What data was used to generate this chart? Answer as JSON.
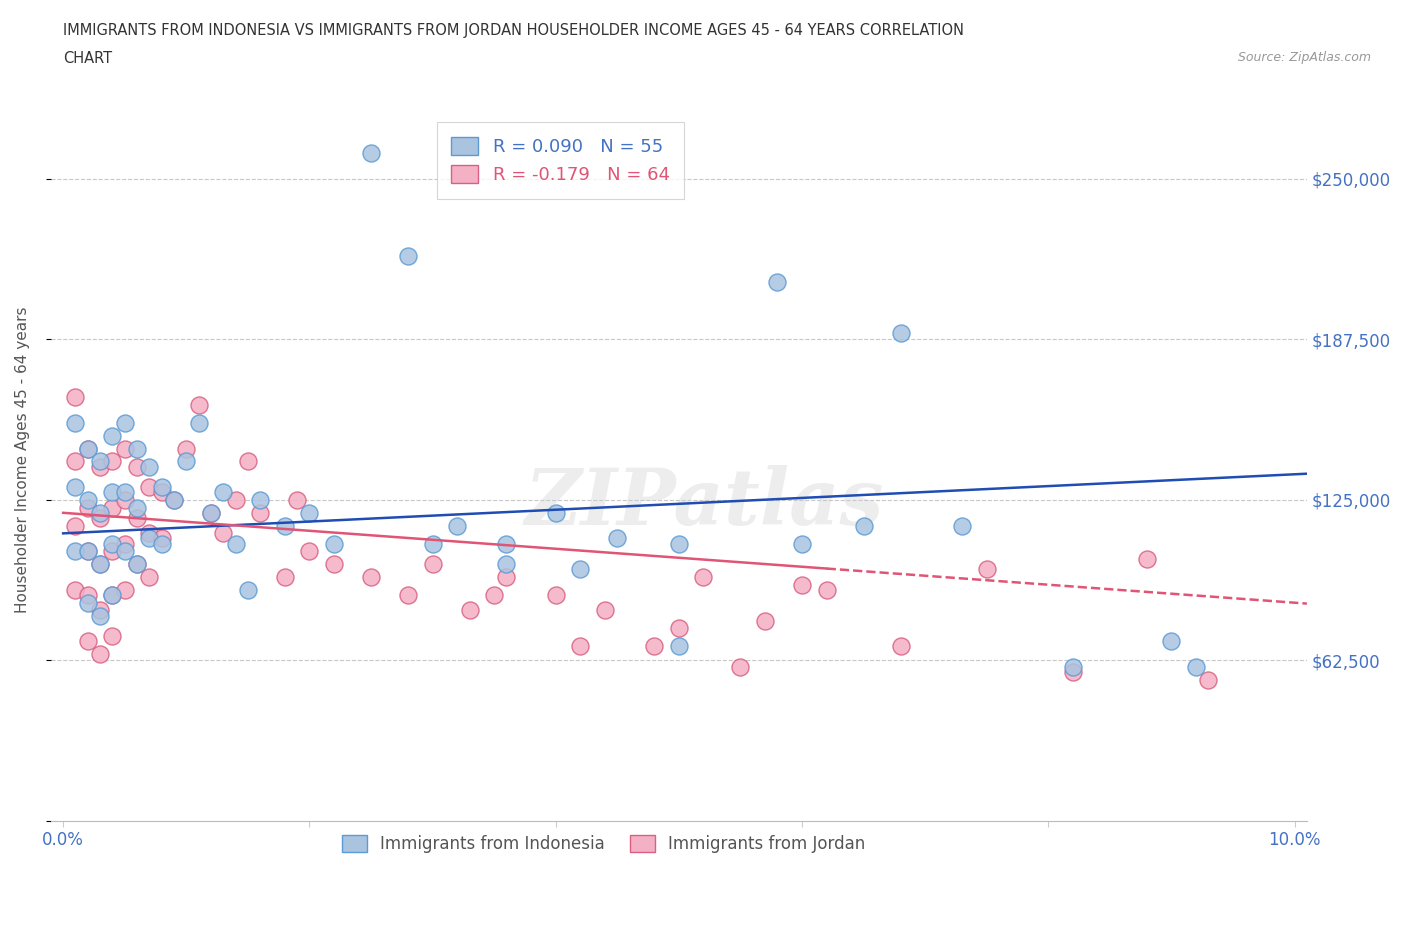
{
  "title_line1": "IMMIGRANTS FROM INDONESIA VS IMMIGRANTS FROM JORDAN HOUSEHOLDER INCOME AGES 45 - 64 YEARS CORRELATION",
  "title_line2": "CHART",
  "source": "Source: ZipAtlas.com",
  "ylabel": "Householder Income Ages 45 - 64 years",
  "xlim": [
    -0.001,
    0.101
  ],
  "ylim": [
    0,
    281250
  ],
  "yticks": [
    0,
    62500,
    125000,
    187500,
    250000
  ],
  "ytick_labels_right": [
    "",
    "$62,500",
    "$125,000",
    "$187,500",
    "$250,000"
  ],
  "xticks": [
    0.0,
    0.02,
    0.04,
    0.06,
    0.08,
    0.1
  ],
  "xtick_labels": [
    "0.0%",
    "",
    "",
    "",
    "",
    "10.0%"
  ],
  "indonesia_color": "#aac4e0",
  "indonesia_edge_color": "#5b9bd5",
  "jordan_color": "#f4b0c5",
  "jordan_edge_color": "#d96080",
  "trend_indonesia_color": "#1f4db3",
  "trend_jordan_color": "#e05575",
  "legend_label1": "R = 0.090   N = 55",
  "legend_label2": "R = -0.179   N = 64",
  "watermark": "ZIPatlas",
  "background_color": "#ffffff",
  "grid_color": "#c8c8c8",
  "tick_label_color": "#4472c4",
  "ylabel_color": "#555555",
  "title_color": "#333333",
  "source_color": "#999999",
  "indonesia_x": [
    0.001,
    0.001,
    0.001,
    0.002,
    0.002,
    0.002,
    0.002,
    0.003,
    0.003,
    0.003,
    0.003,
    0.004,
    0.004,
    0.004,
    0.004,
    0.005,
    0.005,
    0.005,
    0.006,
    0.006,
    0.006,
    0.007,
    0.007,
    0.008,
    0.008,
    0.009,
    0.01,
    0.011,
    0.012,
    0.013,
    0.014,
    0.015,
    0.016,
    0.018,
    0.02,
    0.022,
    0.025,
    0.028,
    0.032,
    0.036,
    0.04,
    0.045,
    0.05,
    0.058,
    0.065,
    0.073,
    0.082,
    0.09,
    0.036,
    0.042,
    0.05,
    0.03,
    0.06,
    0.068,
    0.092
  ],
  "indonesia_y": [
    155000,
    130000,
    105000,
    145000,
    125000,
    105000,
    85000,
    140000,
    120000,
    100000,
    80000,
    150000,
    128000,
    108000,
    88000,
    155000,
    128000,
    105000,
    145000,
    122000,
    100000,
    138000,
    110000,
    130000,
    108000,
    125000,
    140000,
    155000,
    120000,
    128000,
    108000,
    90000,
    125000,
    115000,
    120000,
    108000,
    260000,
    220000,
    115000,
    108000,
    120000,
    110000,
    108000,
    210000,
    115000,
    115000,
    60000,
    70000,
    100000,
    98000,
    68000,
    108000,
    108000,
    190000,
    60000
  ],
  "jordan_x": [
    0.001,
    0.001,
    0.001,
    0.001,
    0.002,
    0.002,
    0.002,
    0.002,
    0.002,
    0.003,
    0.003,
    0.003,
    0.003,
    0.003,
    0.004,
    0.004,
    0.004,
    0.004,
    0.004,
    0.005,
    0.005,
    0.005,
    0.005,
    0.006,
    0.006,
    0.006,
    0.007,
    0.007,
    0.007,
    0.008,
    0.008,
    0.009,
    0.01,
    0.011,
    0.012,
    0.013,
    0.014,
    0.015,
    0.016,
    0.018,
    0.02,
    0.022,
    0.025,
    0.028,
    0.03,
    0.033,
    0.036,
    0.04,
    0.044,
    0.048,
    0.052,
    0.057,
    0.062,
    0.068,
    0.075,
    0.082,
    0.088,
    0.093,
    0.05,
    0.035,
    0.042,
    0.019,
    0.055,
    0.06
  ],
  "jordan_y": [
    165000,
    140000,
    115000,
    90000,
    145000,
    122000,
    105000,
    88000,
    70000,
    138000,
    118000,
    100000,
    82000,
    65000,
    140000,
    122000,
    105000,
    88000,
    72000,
    145000,
    125000,
    108000,
    90000,
    138000,
    118000,
    100000,
    130000,
    112000,
    95000,
    128000,
    110000,
    125000,
    145000,
    162000,
    120000,
    112000,
    125000,
    140000,
    120000,
    95000,
    105000,
    100000,
    95000,
    88000,
    100000,
    82000,
    95000,
    88000,
    82000,
    68000,
    95000,
    78000,
    90000,
    68000,
    98000,
    58000,
    102000,
    55000,
    75000,
    88000,
    68000,
    125000,
    60000,
    92000
  ]
}
